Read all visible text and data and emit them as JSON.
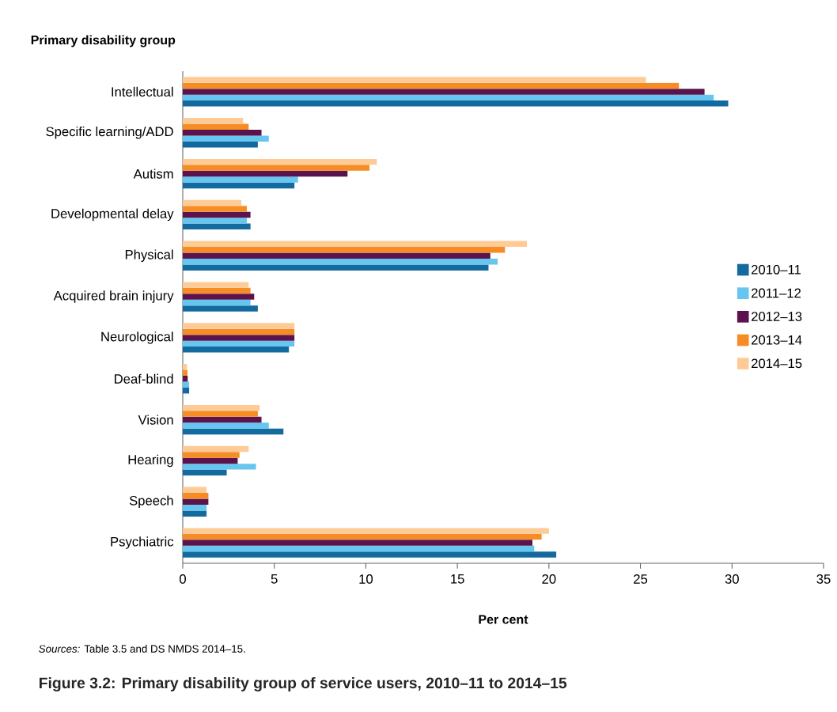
{
  "chart_data": {
    "type": "bar",
    "orientation": "horizontal",
    "title": "Figure 3.2: Primary disability group of service users, 2010–11 to 2014–15",
    "ylabel": "Primary disability group",
    "xlabel": "Per cent",
    "categories": [
      "Intellectual",
      "Specific learning/ADD",
      "Autism",
      "Developmental delay",
      "Physical",
      "Acquired brain injury",
      "Neurological",
      "Deaf-blind",
      "Vision",
      "Hearing",
      "Speech",
      "Psychiatric"
    ],
    "series": [
      {
        "name": "2010–11",
        "color": "#136a9e",
        "values": [
          29.8,
          4.1,
          6.1,
          3.7,
          16.7,
          4.1,
          5.8,
          0.35,
          5.5,
          2.4,
          1.3,
          20.4
        ]
      },
      {
        "name": "2011–12",
        "color": "#66c6f0",
        "values": [
          29.0,
          4.7,
          6.3,
          3.5,
          17.2,
          3.7,
          6.1,
          0.35,
          4.7,
          4.0,
          1.3,
          19.2
        ]
      },
      {
        "name": "2012–13",
        "color": "#5b134d",
        "values": [
          28.5,
          4.3,
          9.0,
          3.7,
          16.8,
          3.9,
          6.1,
          0.27,
          4.3,
          3.0,
          1.4,
          19.1
        ]
      },
      {
        "name": "2013–14",
        "color": "#f68c25",
        "values": [
          27.1,
          3.6,
          10.2,
          3.5,
          17.6,
          3.7,
          6.1,
          0.26,
          4.1,
          3.1,
          1.4,
          19.6
        ]
      },
      {
        "name": "2014–15",
        "color": "#fecb97",
        "values": [
          25.3,
          3.3,
          10.6,
          3.2,
          18.8,
          3.6,
          6.1,
          0.23,
          4.2,
          3.6,
          1.3,
          20.0
        ]
      }
    ],
    "xlim": [
      0,
      35
    ],
    "xticks": [
      0,
      5,
      10,
      15,
      20,
      25,
      30,
      35
    ],
    "legend": "right",
    "annotations": [
      "*Sources:* Table 3.5 and DS NMDS 2014–15."
    ]
  }
}
